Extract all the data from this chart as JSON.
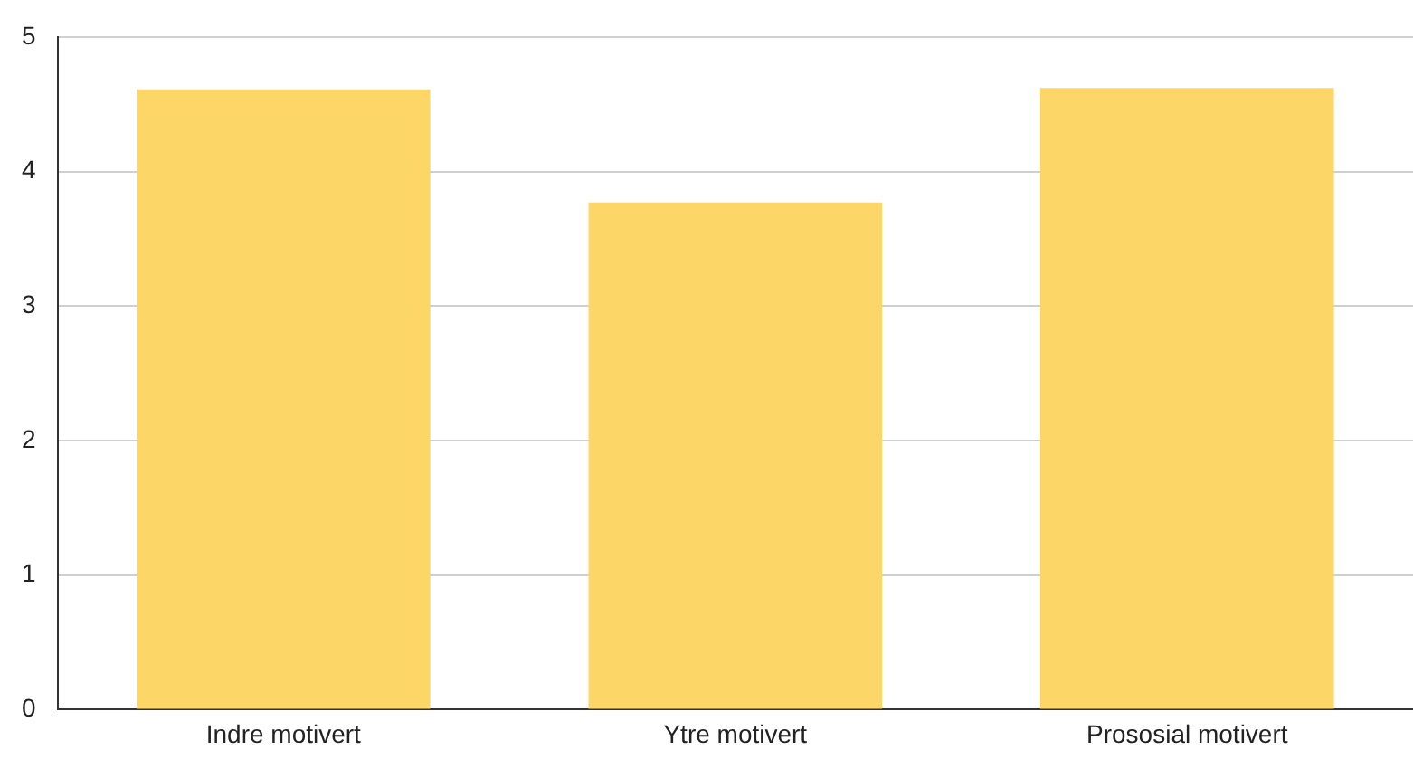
{
  "chart_data": {
    "type": "bar",
    "categories": [
      "Indre motivert",
      "Ytre motivert",
      "Prososial motivert"
    ],
    "values": [
      4.61,
      3.77,
      4.62
    ],
    "color": "#fcd667",
    "ylim": [
      0,
      5
    ],
    "yticks": [
      0,
      1,
      2,
      3,
      4,
      5
    ],
    "grid": "y",
    "legend": false
  }
}
